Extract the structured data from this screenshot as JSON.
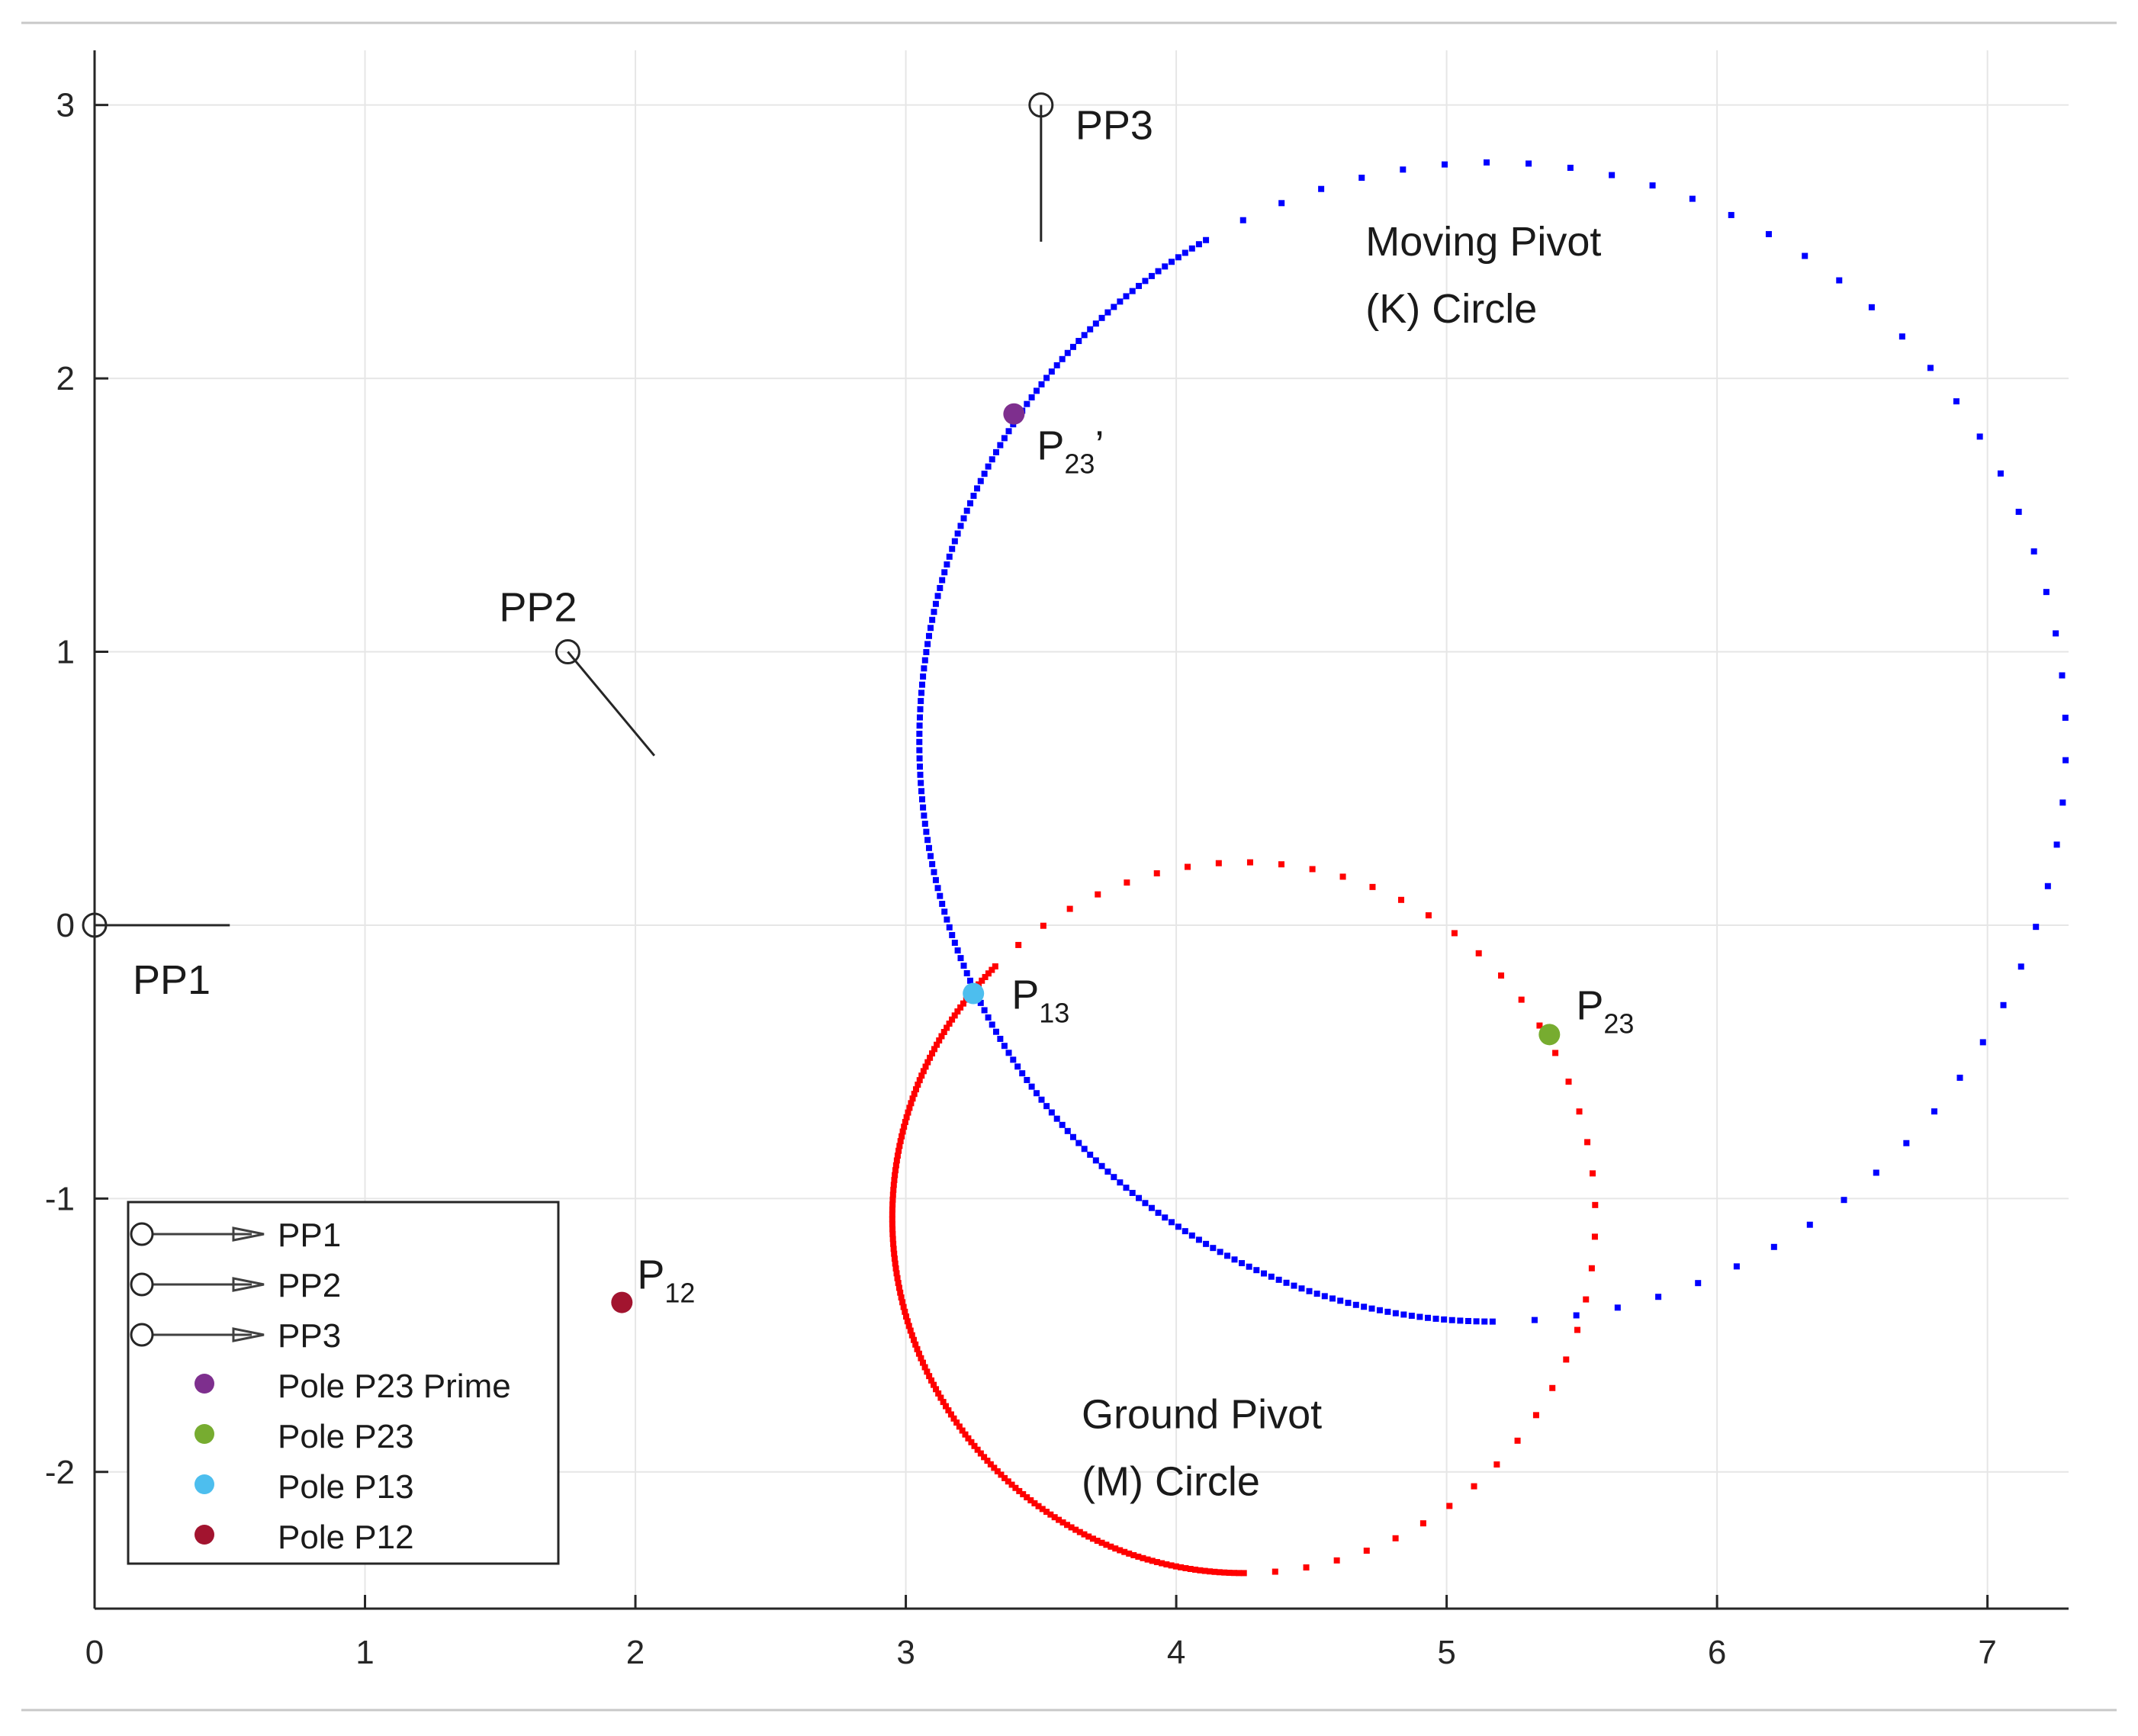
{
  "chart_data": {
    "type": "scatter",
    "title": "",
    "xlabel": "",
    "ylabel": "",
    "xlim": [
      0,
      7.3
    ],
    "ylim": [
      -2.5,
      3.2
    ],
    "x_ticks": [
      0,
      1,
      2,
      3,
      4,
      5,
      6,
      7
    ],
    "y_ticks": [
      -2,
      -1,
      0,
      1,
      2,
      3
    ],
    "x_tick_labels": [
      "0",
      "1",
      "2",
      "3",
      "4",
      "5",
      "6",
      "7"
    ],
    "y_tick_labels": [
      "-2",
      "-1",
      "0",
      "1",
      "2",
      "3"
    ],
    "grid": true,
    "precision_positions": [
      {
        "name": "PP1",
        "label": "PP1",
        "x": 0,
        "y": 0,
        "line_to": {
          "x": 0.5,
          "y": 0
        }
      },
      {
        "name": "PP2",
        "label": "PP2",
        "x": 1.75,
        "y": 1.0,
        "line_to": {
          "x": 2.07,
          "y": 0.62
        }
      },
      {
        "name": "PP3",
        "label": "PP3",
        "x": 3.5,
        "y": 3.0,
        "line_to": {
          "x": 3.5,
          "y": 2.5
        }
      }
    ],
    "circles": [
      {
        "name": "Moving Pivot (K) Circle",
        "label_lines": [
          "Moving Pivot",
          "(K) Circle"
        ],
        "label_at": {
          "x": 4.7,
          "y": 2.45
        },
        "color": "#0000ff",
        "center": {
          "x": 5.17,
          "y": 0.67
        },
        "radius": 2.12,
        "dense_arc_deg": [
          120,
          270
        ],
        "dense_count": 185,
        "sparse_count": 50
      },
      {
        "name": "Ground Pivot (M) Circle",
        "label_lines": [
          "Ground Pivot",
          "(M) Circle"
        ],
        "label_at": {
          "x": 3.65,
          "y": -1.84
        },
        "color": "#ff0000",
        "center": {
          "x": 4.25,
          "y": -1.07
        },
        "radius": 1.3,
        "dense_arc_deg": [
          135,
          270
        ],
        "dense_count": 170,
        "sparse_count": 44
      }
    ],
    "poles": [
      {
        "name": "Pole P23 Prime",
        "label": "P",
        "subscript": "23",
        "suffix": "’",
        "x": 3.4,
        "y": 1.87,
        "color": "#7e2f8e"
      },
      {
        "name": "Pole P23",
        "label": "P",
        "subscript": "23",
        "suffix": "",
        "x": 5.38,
        "y": -0.4,
        "color": "#77ac30"
      },
      {
        "name": "Pole P13",
        "label": "P",
        "subscript": "13",
        "suffix": "",
        "x": 3.25,
        "y": -0.25,
        "color": "#4dbeee"
      },
      {
        "name": "Pole P12",
        "label": "P",
        "subscript": "12",
        "suffix": "",
        "x": 1.95,
        "y": -1.38,
        "color": "#a2142f"
      }
    ],
    "legend": {
      "placement": "bottom-left",
      "entries": [
        {
          "label": "PP1",
          "kind": "arrow",
          "color": "#404040"
        },
        {
          "label": "PP2",
          "kind": "arrow",
          "color": "#404040"
        },
        {
          "label": "PP3",
          "kind": "arrow",
          "color": "#404040"
        },
        {
          "label": "Pole P23 Prime",
          "kind": "dot",
          "color": "#7e2f8e"
        },
        {
          "label": "Pole P23",
          "kind": "dot",
          "color": "#77ac30"
        },
        {
          "label": "Pole P13",
          "kind": "dot",
          "color": "#4dbeee"
        },
        {
          "label": "Pole P12",
          "kind": "dot",
          "color": "#a2142f"
        }
      ]
    }
  }
}
